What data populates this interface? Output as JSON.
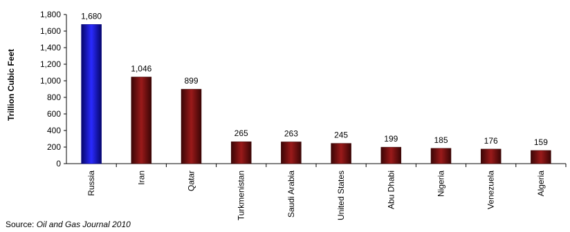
{
  "chart_data": {
    "type": "bar",
    "title": "",
    "xlabel": "",
    "ylabel": "Trillion Cubic Feet",
    "ylim": [
      0,
      1800
    ],
    "ytick_step": 200,
    "ytick_labels": [
      "0",
      "200",
      "400",
      "600",
      "800",
      "1,000",
      "1,200",
      "1,400",
      "1,600",
      "1,800"
    ],
    "categories": [
      "Russia",
      "Iran",
      "Qatar",
      "Turkmenistan",
      "Saudi Arabia",
      "United States",
      "Abu Dhabi",
      "Nigeria",
      "Venezuela",
      "Algeria"
    ],
    "values": [
      1680,
      1046,
      899,
      265,
      263,
      245,
      199,
      185,
      176,
      159
    ],
    "data_labels": [
      "1,680",
      "1,046",
      "899",
      "265",
      "263",
      "245",
      "199",
      "185",
      "176",
      "159"
    ],
    "highlight_category": "Russia",
    "colors": {
      "highlight": "#1010e0",
      "bar": "#7a0d0d",
      "axis": "#000000"
    },
    "grid": false,
    "legend": "none"
  },
  "source": {
    "prefix": "Source:",
    "name": "Oil and Gas Journal 2010"
  }
}
